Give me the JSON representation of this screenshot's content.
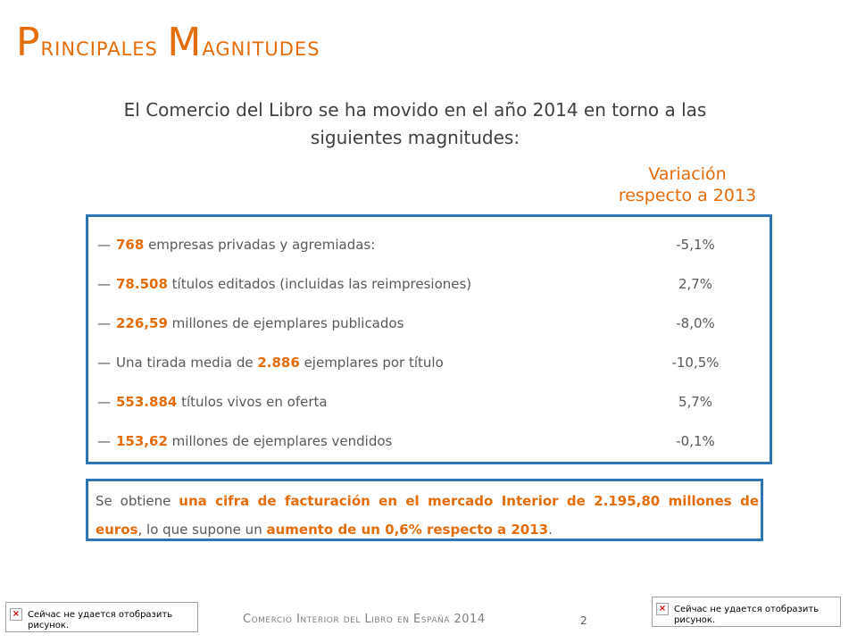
{
  "title": {
    "first": "P",
    "rest": "rincipales ",
    "first2": "M",
    "rest2": "agnitudes"
  },
  "intro": "El Comercio del Libro se ha movido en el año 2014 en torno a las siguientes magnitudes:",
  "variation_header": {
    "line1": "Variación",
    "line2": "respecto a 2013"
  },
  "rows": [
    {
      "value": "768",
      "text": " empresas privadas y agremiadas:",
      "pct": "-5,1%"
    },
    {
      "value": "78.508",
      "text": " títulos editados (incluidas las reimpresiones)",
      "pct": "2,7%"
    },
    {
      "value": "226,59",
      "text": " millones de ejemplares publicados",
      "pct": "-8,0%"
    },
    {
      "pre": "Una tirada media de ",
      "value": "2.886",
      "text": " ejemplares por título",
      "pct": "-10,5%"
    },
    {
      "value": "553.884",
      "text": " títulos vivos en oferta",
      "pct": "5,7%"
    },
    {
      "value": "153,62",
      "text": " millones de ejemplares vendidos",
      "pct": "-0,1%"
    }
  ],
  "dash": "—",
  "summary": {
    "p1": "Se obtiene ",
    "b1": "una cifra de facturación en el mercado Interior de 2.195,80 millones de euros",
    "p2": ", lo que supone un ",
    "b2": "aumento de un 0,6% respecto a 2013",
    "p3": "."
  },
  "footer": "Comercio Interior del Libro en España 2014",
  "page_number": "2",
  "image_placeholder": {
    "line1": "Сейчас не удается отобразить",
    "line2": "рисунок."
  }
}
